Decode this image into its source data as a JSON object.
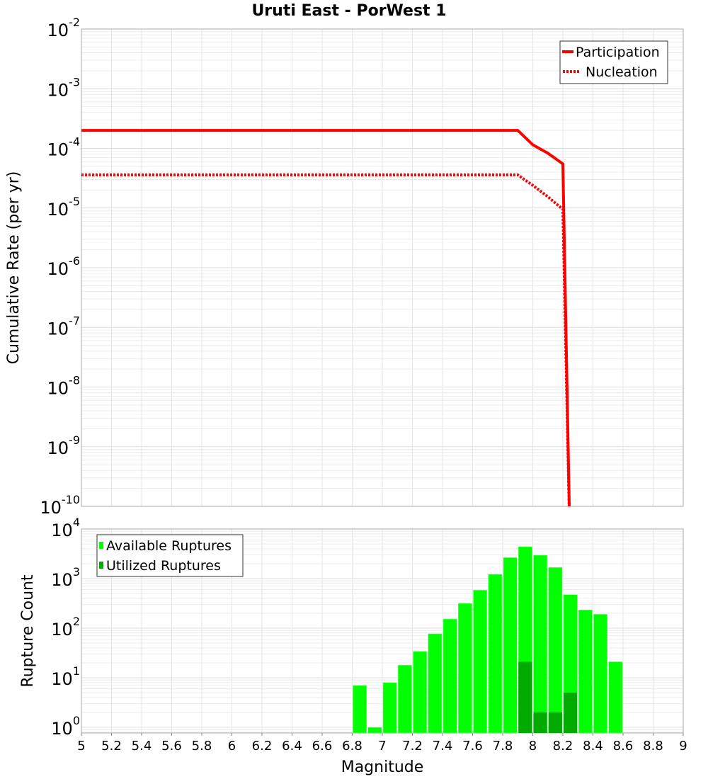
{
  "chart_data": [
    {
      "type": "line",
      "title": "Uruti East - PorWest 1",
      "xlabel": "Magnitude",
      "ylabel": "Cumulative Rate (per yr)",
      "xlim": [
        5,
        9
      ],
      "ylim": [
        1e-10,
        0.01
      ],
      "yscale": "log",
      "grid": true,
      "legend_position": "top-right",
      "y_tick_exponents": [
        "-2",
        "-3",
        "-4",
        "-5",
        "-6",
        "-7",
        "-8",
        "-9",
        "-10"
      ],
      "series": [
        {
          "name": "Participation",
          "style": "solid",
          "color": "#ff0000",
          "x": [
            5.0,
            7.9,
            8.0,
            8.1,
            8.2,
            8.25
          ],
          "y": [
            0.0002,
            0.0002,
            0.000115,
            8.3e-05,
            5.5e-05,
            1e-11
          ]
        },
        {
          "name": "Nucleation",
          "style": "dotted",
          "color": "#ff0000",
          "x": [
            5.0,
            7.9,
            8.0,
            8.1,
            8.2,
            8.25
          ],
          "y": [
            3.6e-05,
            3.6e-05,
            2.4e-05,
            1.55e-05,
            9.5e-06,
            1e-11
          ]
        }
      ]
    },
    {
      "type": "bar",
      "xlabel": "Magnitude",
      "ylabel": "Rupture Count",
      "xlim": [
        5,
        9
      ],
      "ylim": [
        0.77,
        10000
      ],
      "yscale": "log",
      "grid": true,
      "legend_position": "top-left",
      "x_ticks": [
        "5",
        "5.2",
        "5.4",
        "5.6",
        "5.8",
        "6",
        "6.2",
        "6.4",
        "6.6",
        "6.8",
        "7",
        "7.2",
        "7.4",
        "7.6",
        "7.8",
        "8",
        "8.2",
        "8.4",
        "8.6",
        "8.8",
        "9"
      ],
      "y_tick_exponents": [
        "4",
        "3",
        "2",
        "1",
        "0"
      ],
      "bin_width": 0.1,
      "series": [
        {
          "name": "Available Ruptures",
          "color": "#00ff00",
          "x": [
            6.85,
            6.95,
            7.05,
            7.15,
            7.25,
            7.35,
            7.45,
            7.55,
            7.65,
            7.75,
            7.85,
            7.95,
            8.05,
            8.15,
            8.25,
            8.35,
            8.45,
            8.55
          ],
          "values": [
            7,
            1,
            8,
            18,
            34,
            77,
            153,
            316,
            585,
            1220,
            2650,
            4400,
            2960,
            1675,
            474,
            233,
            191,
            21
          ]
        },
        {
          "name": "Utilized Ruptures",
          "color": "#00aa00",
          "x": [
            7.95,
            8.05,
            8.15,
            8.25
          ],
          "values": [
            21,
            2,
            2,
            5
          ]
        }
      ]
    }
  ]
}
